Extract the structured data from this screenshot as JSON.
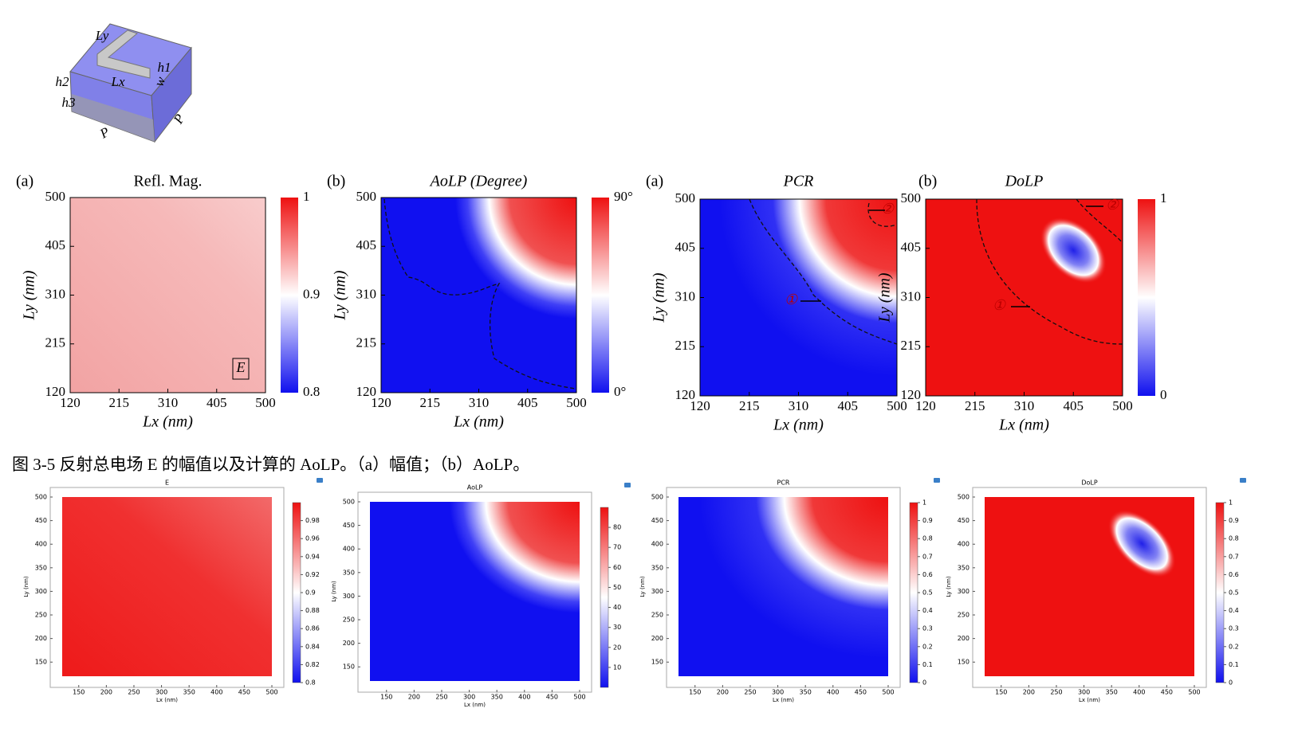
{
  "diagram": {
    "labels": [
      "Ly",
      "h1",
      "h2",
      "h3",
      "Lx",
      "w",
      "P",
      "P"
    ]
  },
  "top_panels": [
    {
      "tag": "(a)",
      "title": "Refl. Mag.",
      "x_label": "Lx (nm)",
      "y_label": "Ly (nm)",
      "x_ticks": [
        120,
        215,
        310,
        405,
        500
      ],
      "y_ticks": [
        120,
        215,
        310,
        405,
        500
      ],
      "colorbar_ticks": [
        1,
        0.9,
        0.8
      ],
      "annotations": [
        "E"
      ]
    },
    {
      "tag": "(b)",
      "title": "AoLP (Degree)",
      "x_label": "Lx (nm)",
      "y_label": "Ly (nm)",
      "x_ticks": [
        120,
        215,
        310,
        405,
        500
      ],
      "y_ticks": [
        120,
        215,
        310,
        405,
        500
      ],
      "colorbar_ticks": [
        {
          "value": 90,
          "label": "90°"
        },
        {
          "value": 0,
          "label": "0°"
        }
      ],
      "annotations": []
    },
    {
      "tag": "(a)",
      "title": "PCR",
      "x_label": "Lx (nm)",
      "y_label": "Ly (nm)",
      "x_ticks": [
        120,
        215,
        310,
        405,
        500
      ],
      "y_ticks": [
        120,
        215,
        310,
        405,
        500
      ],
      "colorbar_ticks": [],
      "annotations": [
        "①",
        "②"
      ]
    },
    {
      "tag": "(b)",
      "title": "DoLP",
      "x_label": "Lx (nm)",
      "y_label": "Ly (nm)",
      "x_ticks": [
        120,
        215,
        310,
        405,
        500
      ],
      "y_ticks": [
        120,
        215,
        310,
        405,
        500
      ],
      "colorbar_ticks": [
        1,
        0
      ],
      "annotations": [
        "①",
        "②"
      ]
    }
  ],
  "caption": "图 3-5 反射总电场 E 的幅值以及计算的 AoLP。（a）幅值；（b）AoLP。",
  "bottom_panels": [
    {
      "title": "E",
      "x_label": "Lx (nm)",
      "y_label": "Ly (nm)",
      "xlim": [
        120,
        500
      ],
      "ylim": [
        120,
        500
      ],
      "x_ticks": [
        150,
        200,
        250,
        300,
        350,
        400,
        450,
        500
      ],
      "y_ticks": [
        150,
        200,
        250,
        300,
        350,
        400,
        450,
        500
      ],
      "colorbar_lim": [
        0.8,
        1
      ],
      "colorbar_ticks": [
        0.98,
        0.96,
        0.94,
        0.92,
        0.9,
        0.88,
        0.86,
        0.84,
        0.82,
        0.8
      ]
    },
    {
      "title": "AoLP",
      "x_label": "Lx (nm)",
      "y_label": "Ly (nm)",
      "xlim": [
        120,
        500
      ],
      "ylim": [
        120,
        500
      ],
      "x_ticks": [
        150,
        200,
        250,
        300,
        350,
        400,
        450,
        500
      ],
      "y_ticks": [
        150,
        200,
        250,
        300,
        350,
        400,
        450,
        500
      ],
      "colorbar_lim": [
        0,
        90
      ],
      "colorbar_ticks": [
        80,
        70,
        60,
        50,
        40,
        30,
        20,
        10
      ]
    },
    {
      "title": "PCR",
      "x_label": "Lx (nm)",
      "y_label": "Ly (nm)",
      "xlim": [
        120,
        500
      ],
      "ylim": [
        120,
        500
      ],
      "x_ticks": [
        150,
        200,
        250,
        300,
        350,
        400,
        450,
        500
      ],
      "y_ticks": [
        150,
        200,
        250,
        300,
        350,
        400,
        450,
        500
      ],
      "colorbar_lim": [
        0,
        1
      ],
      "colorbar_ticks": [
        1,
        0.9,
        0.8,
        0.7,
        0.6,
        0.5,
        0.4,
        0.3,
        0.2,
        0.1,
        0
      ]
    },
    {
      "title": "DoLP",
      "x_label": "Lx (nm)",
      "y_label": "Ly (nm)",
      "xlim": [
        120,
        500
      ],
      "ylim": [
        120,
        500
      ],
      "x_ticks": [
        150,
        200,
        250,
        300,
        350,
        400,
        450,
        500
      ],
      "y_ticks": [
        150,
        200,
        250,
        300,
        350,
        400,
        450,
        500
      ],
      "colorbar_lim": [
        0,
        1
      ],
      "colorbar_ticks": [
        1,
        0.9,
        0.8,
        0.7,
        0.6,
        0.5,
        0.4,
        0.3,
        0.2,
        0.1,
        0
      ]
    }
  ]
}
